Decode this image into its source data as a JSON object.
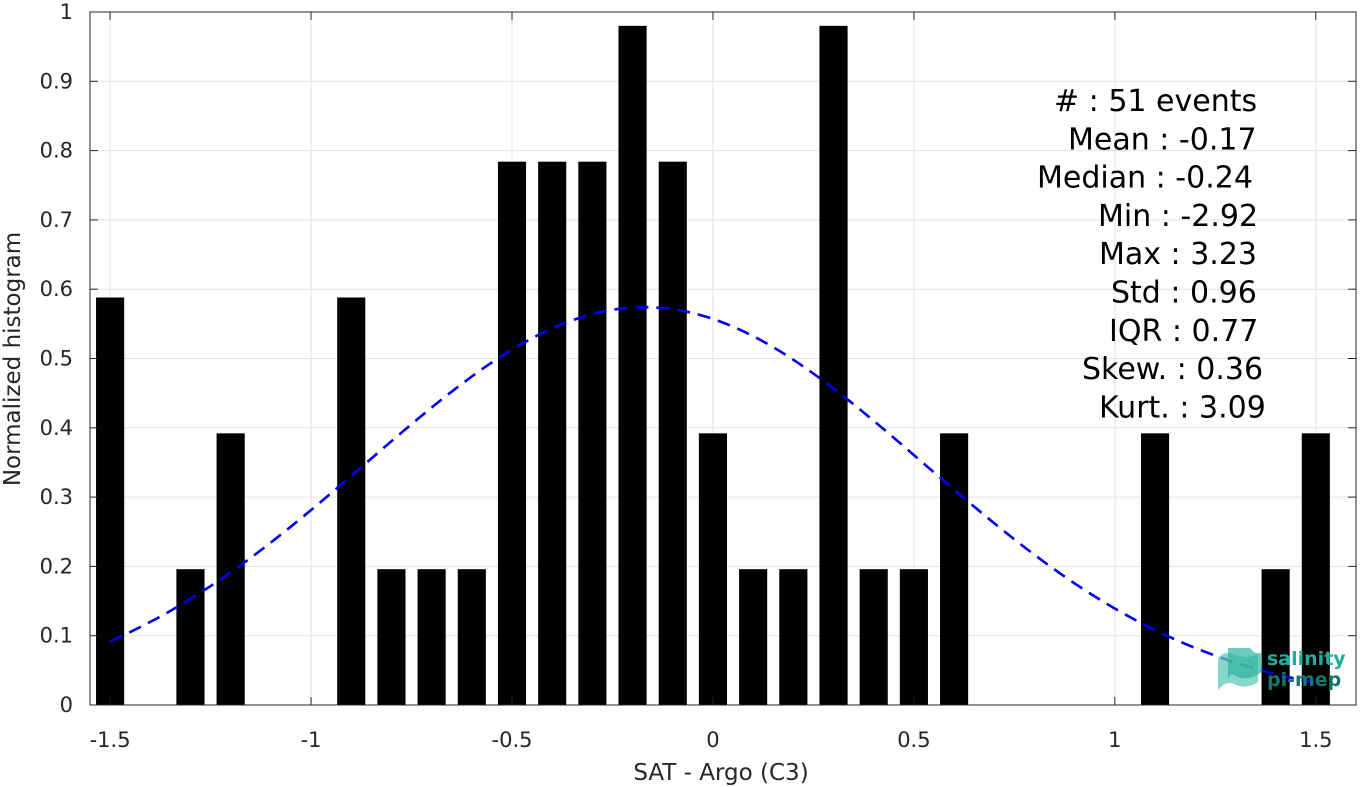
{
  "chart_data": {
    "type": "bar",
    "xlabel": "SAT - Argo (C3)",
    "ylabel": "Normalized histogram",
    "xlim": [
      -1.55,
      1.6
    ],
    "ylim": [
      0,
      1
    ],
    "grid": true,
    "x_ticks": [
      -1.5,
      -1,
      -0.5,
      0,
      0.5,
      1,
      1.5
    ],
    "x_tick_labels": [
      "-1.5",
      "-1",
      "-0.5",
      "0",
      "0.5",
      "1",
      "1.5"
    ],
    "y_ticks": [
      0,
      0.1,
      0.2,
      0.3,
      0.4,
      0.5,
      0.6,
      0.7,
      0.8,
      0.9,
      1
    ],
    "y_tick_labels": [
      "0",
      "0.1",
      "0.2",
      "0.3",
      "0.4",
      "0.5",
      "0.6",
      "0.7",
      "0.8",
      "0.9",
      "1"
    ],
    "bar_width": 0.07,
    "bars": [
      {
        "x": -1.5,
        "value": 0.588
      },
      {
        "x": -1.3,
        "value": 0.196
      },
      {
        "x": -1.2,
        "value": 0.392
      },
      {
        "x": -0.9,
        "value": 0.588
      },
      {
        "x": -0.8,
        "value": 0.196
      },
      {
        "x": -0.7,
        "value": 0.196
      },
      {
        "x": -0.6,
        "value": 0.196
      },
      {
        "x": -0.5,
        "value": 0.784
      },
      {
        "x": -0.4,
        "value": 0.784
      },
      {
        "x": -0.3,
        "value": 0.784
      },
      {
        "x": -0.2,
        "value": 0.98
      },
      {
        "x": -0.1,
        "value": 0.784
      },
      {
        "x": 0.0,
        "value": 0.392
      },
      {
        "x": 0.1,
        "value": 0.196
      },
      {
        "x": 0.2,
        "value": 0.196
      },
      {
        "x": 0.3,
        "value": 0.98
      },
      {
        "x": 0.4,
        "value": 0.196
      },
      {
        "x": 0.5,
        "value": 0.196
      },
      {
        "x": 0.6,
        "value": 0.392
      },
      {
        "x": 1.1,
        "value": 0.392
      },
      {
        "x": 1.4,
        "value": 0.196
      },
      {
        "x": 1.5,
        "value": 0.392
      }
    ],
    "fit_curve": {
      "style": "dashed",
      "color": "#0000ee",
      "mean": -0.17,
      "std": 0.695,
      "x_range": [
        -1.5,
        1.5
      ]
    },
    "stats_lines": [
      "#  : 51 events",
      "Mean : -0.17",
      "Median : -0.24",
      "Min : -2.92",
      "Max : 3.23",
      "Std : 0.96",
      "IQR : 0.77",
      "Skew. : 0.36",
      "Kurt. : 3.09"
    ]
  },
  "logo": {
    "line1": "salinity",
    "line2": "pi-mep",
    "color": "#1fae9e"
  }
}
